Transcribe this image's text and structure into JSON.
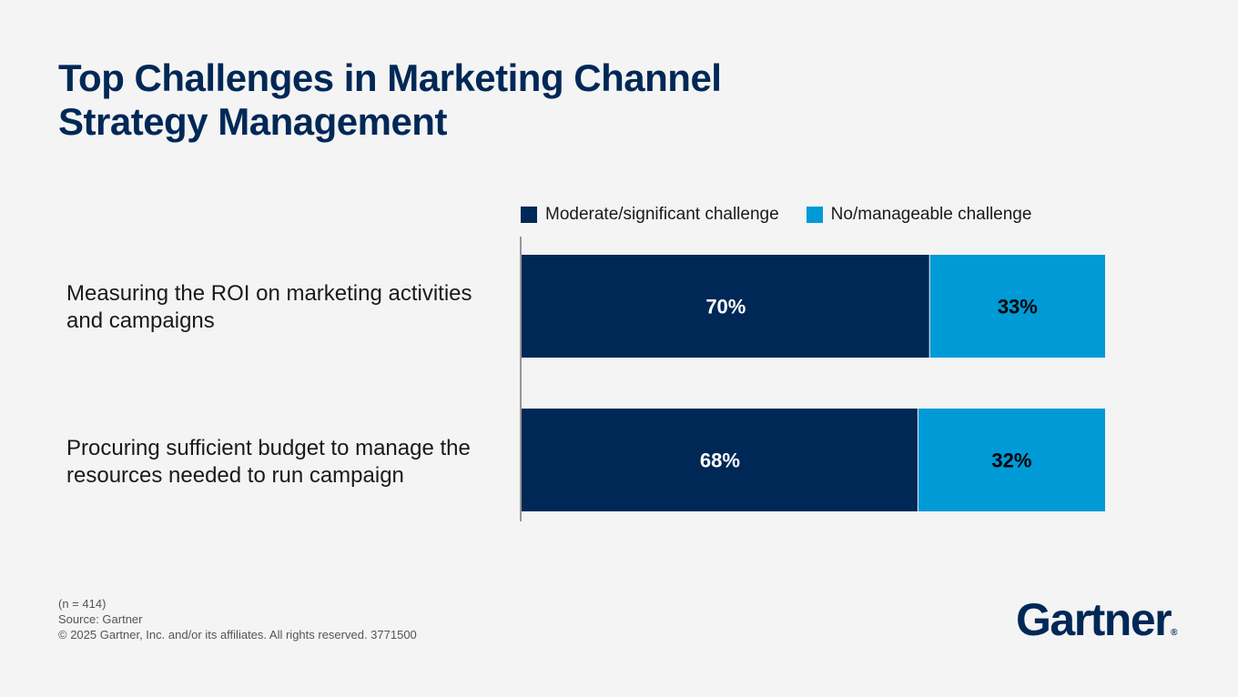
{
  "title": "Top Challenges in Marketing Channel Strategy Management",
  "chart_data": {
    "type": "bar",
    "orientation": "horizontal",
    "stacked": true,
    "categories": [
      "Measuring the ROI on marketing activities and campaigns",
      "Procuring sufficient budget to manage the resources needed to run campaign"
    ],
    "series": [
      {
        "name": "Moderate/significant challenge",
        "values": [
          70,
          68
        ],
        "labels": [
          "70%",
          "68%"
        ],
        "color": "#002856",
        "label_color": "#ffffff"
      },
      {
        "name": "No/manageable challenge",
        "values": [
          33,
          32
        ],
        "labels": [
          "33%",
          "32%"
        ],
        "color": "#009ad7",
        "label_color": "#000000"
      }
    ],
    "xlim": [
      0,
      100
    ],
    "grid": false,
    "legend": "top"
  },
  "footer": {
    "n": "(n = 414)",
    "source": "Source: Gartner",
    "copyright": "© 2025 Gartner, Inc. and/or its affiliates. All rights reserved. 3771500"
  },
  "logo": "Gartner"
}
